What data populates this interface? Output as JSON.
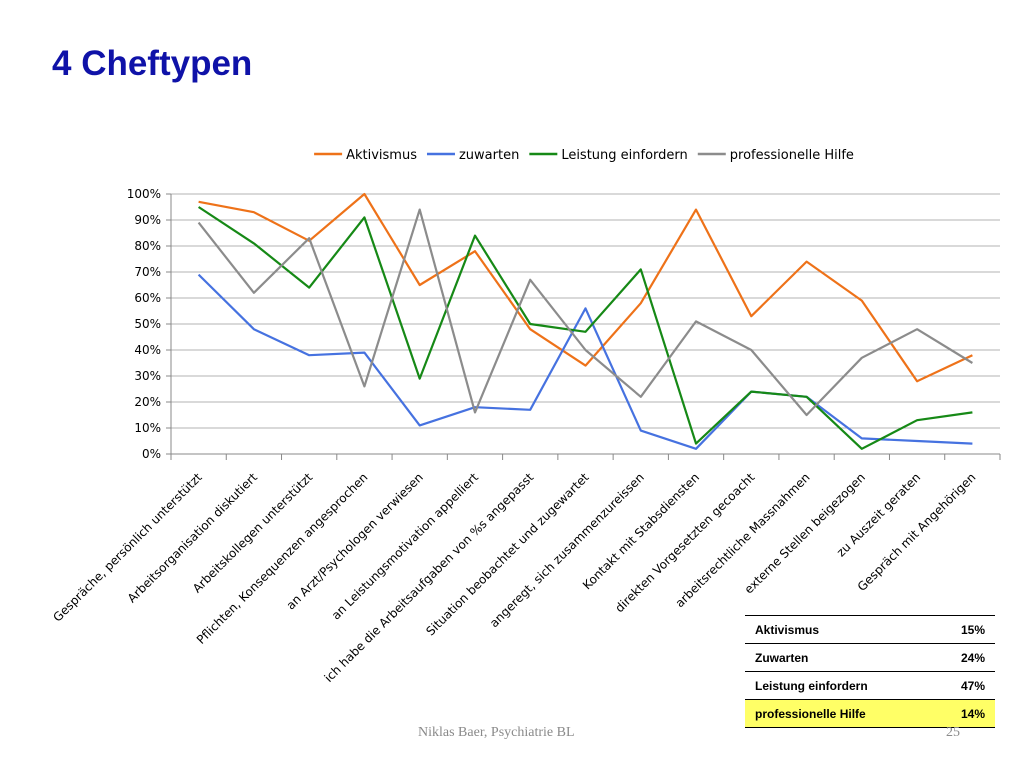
{
  "slide": {
    "title": "4 Cheftypen",
    "footer_author": "Niklas Baer, Psychiatrie BL",
    "page_number": "25"
  },
  "chart_data": {
    "type": "line",
    "title": "",
    "xlabel": "",
    "ylabel": "",
    "ylim": [
      0,
      100
    ],
    "y_tick_labels": [
      "0%",
      "10%",
      "20%",
      "30%",
      "40%",
      "50%",
      "60%",
      "70%",
      "80%",
      "90%",
      "100%"
    ],
    "grid": true,
    "legend_position": "top",
    "categories": [
      "Gespräche, persönlich unterstützt",
      "Arbeitsorganisation diskutiert",
      "Arbeitskollegen unterstützt",
      "Pflichten, Konsequenzen angesprochen",
      "an Arzt/Psychologen verwiesen",
      "an Leistungsmotivation appelliert",
      "ich habe die Arbeitsaufgaben von %s angepasst",
      "Situation beobachtet und zugewartet",
      "angeregt, sich zusammenzureissen",
      "Kontakt mit Stabsdiensten",
      "direkten Vorgesetzten gecoacht",
      "arbeitsrechtliche Massnahmen",
      "externe Stellen beigezogen",
      "zu Auszeit geraten",
      "Gespräch mit Angehörigen"
    ],
    "series": [
      {
        "name": "Aktivismus",
        "color": "#ee7219",
        "values": [
          97,
          93,
          82,
          100,
          65,
          78,
          48,
          34,
          58,
          94,
          53,
          74,
          59,
          28,
          38
        ]
      },
      {
        "name": "zuwarten",
        "color": "#4672e0",
        "values": [
          69,
          48,
          38,
          39,
          11,
          18,
          17,
          56,
          9,
          2,
          24,
          22,
          6,
          5,
          4
        ]
      },
      {
        "name": "Leistung einfordern",
        "color": "#168916",
        "values": [
          95,
          81,
          64,
          91,
          29,
          84,
          50,
          47,
          71,
          4,
          24,
          22,
          2,
          13,
          16
        ]
      },
      {
        "name": "professionelle Hilfe",
        "color": "#8c8c8c",
        "values": [
          89,
          62,
          83,
          26,
          94,
          16,
          67,
          40,
          22,
          51,
          40,
          15,
          37,
          48,
          35
        ]
      }
    ]
  },
  "summary_table": {
    "rows": [
      {
        "label": "Aktivismus",
        "value": "15%"
      },
      {
        "label": "Zuwarten",
        "value": "24%"
      },
      {
        "label": "Leistung einfordern",
        "value": "47%"
      },
      {
        "label": "professionelle Hilfe",
        "value": "14%"
      }
    ]
  },
  "colors": {
    "title": "#0f12a8",
    "highlight_row": "#ffff66",
    "gridline": "#b3b3b3"
  }
}
